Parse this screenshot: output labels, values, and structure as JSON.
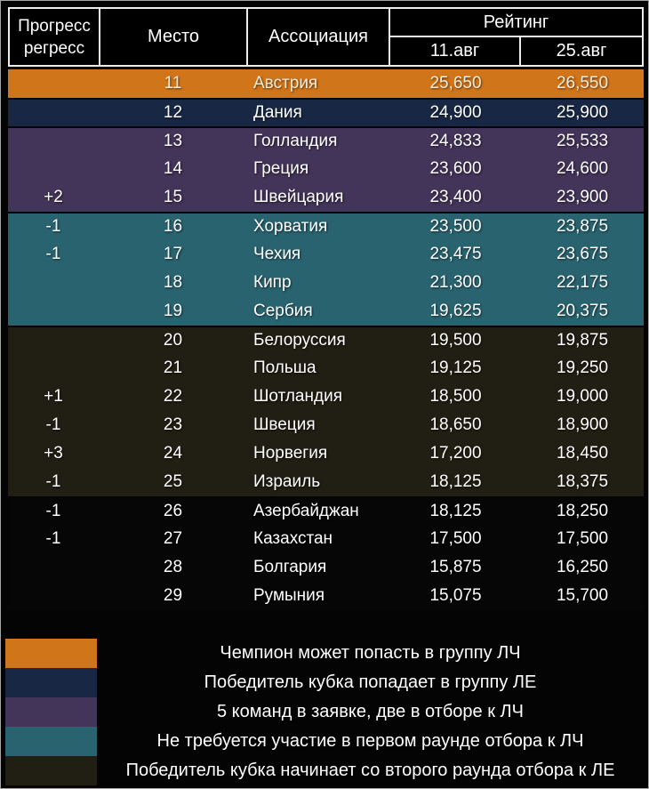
{
  "colors": {
    "orange": "#d1751a",
    "navy": "#182844",
    "purple": "#433459",
    "teal": "#29636f",
    "olive": "#211e13",
    "black": "#060606",
    "orange_text": "#f5eedc",
    "header_border": "#ececec",
    "text": "#ffffff"
  },
  "chart_data": {
    "type": "table",
    "header": {
      "progress_line1": "Прогресс",
      "progress_line2": "регресс",
      "place": "Место",
      "association": "Ассоциация",
      "rating_group": "Рейтинг",
      "date1": "11.авг",
      "date2": "25.авг"
    },
    "rows": [
      {
        "progress": "",
        "place": "11",
        "association": "Австрия",
        "r1": "25,650",
        "r2": "26,550",
        "band": "orange"
      },
      {
        "progress": "",
        "place": "12",
        "association": "Дания",
        "r1": "24,900",
        "r2": "25,900",
        "band": "navy"
      },
      {
        "progress": "",
        "place": "13",
        "association": "Голландия",
        "r1": "24,833",
        "r2": "25,533",
        "band": "purple"
      },
      {
        "progress": "",
        "place": "14",
        "association": "Греция",
        "r1": "23,600",
        "r2": "24,600",
        "band": "purple"
      },
      {
        "progress": "+2",
        "place": "15",
        "association": "Швейцария",
        "r1": "23,400",
        "r2": "23,900",
        "band": "purple"
      },
      {
        "progress": "-1",
        "place": "16",
        "association": "Хорватия",
        "r1": "23,500",
        "r2": "23,875",
        "band": "teal"
      },
      {
        "progress": "-1",
        "place": "17",
        "association": "Чехия",
        "r1": "23,475",
        "r2": "23,675",
        "band": "teal"
      },
      {
        "progress": "",
        "place": "18",
        "association": "Кипр",
        "r1": "21,300",
        "r2": "22,175",
        "band": "teal"
      },
      {
        "progress": "",
        "place": "19",
        "association": "Сербия",
        "r1": "19,625",
        "r2": "20,375",
        "band": "teal"
      },
      {
        "progress": "",
        "place": "20",
        "association": "Белоруссия",
        "r1": "19,500",
        "r2": "19,875",
        "band": "olive"
      },
      {
        "progress": "",
        "place": "21",
        "association": "Польша",
        "r1": "19,125",
        "r2": "19,250",
        "band": "olive"
      },
      {
        "progress": "+1",
        "place": "22",
        "association": "Шотландия",
        "r1": "18,500",
        "r2": "19,000",
        "band": "olive"
      },
      {
        "progress": "-1",
        "place": "23",
        "association": "Швеция",
        "r1": "18,650",
        "r2": "18,900",
        "band": "olive"
      },
      {
        "progress": "+3",
        "place": "24",
        "association": "Норвегия",
        "r1": "17,200",
        "r2": "18,450",
        "band": "olive"
      },
      {
        "progress": "-1",
        "place": "25",
        "association": "Израиль",
        "r1": "18,125",
        "r2": "18,375",
        "band": "olive"
      },
      {
        "progress": "-1",
        "place": "26",
        "association": "Азербайджан",
        "r1": "18,125",
        "r2": "18,250",
        "band": "black"
      },
      {
        "progress": "-1",
        "place": "27",
        "association": "Казахстан",
        "r1": "17,500",
        "r2": "17,500",
        "band": "black"
      },
      {
        "progress": "",
        "place": "28",
        "association": "Болгария",
        "r1": "15,875",
        "r2": "16,250",
        "band": "black"
      },
      {
        "progress": "",
        "place": "29",
        "association": "Румыния",
        "r1": "15,075",
        "r2": "15,700",
        "band": "black"
      }
    ],
    "legend": [
      {
        "band": "orange",
        "label": "Чемпион может попасть в группу ЛЧ"
      },
      {
        "band": "navy",
        "label": "Победитель кубка попадает в группу ЛЕ"
      },
      {
        "band": "purple",
        "label": "5 команд в заявке, две в отборе к ЛЧ"
      },
      {
        "band": "teal",
        "label": "Не требуется участие в первом раунде отбора к ЛЧ"
      },
      {
        "band": "olive",
        "label": "Победитель кубка начинает со второго раунда отбора к ЛЕ"
      }
    ]
  }
}
